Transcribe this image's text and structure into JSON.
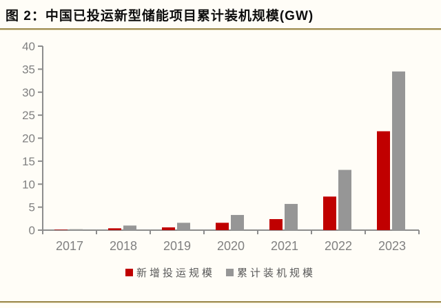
{
  "header": {
    "title": "图 2：中国已投运新型储能项目累计装机规模(GW)"
  },
  "colors": {
    "accent_red": "#c00000",
    "bar_gray": "#969696",
    "axis": "#8c8c8c",
    "tick_label": "#808080",
    "rule_gold": "#9c8a4d",
    "background": "#fffdf7",
    "legend_text": "#595959"
  },
  "chart_data": {
    "type": "bar",
    "title": "图 2：中国已投运新型储能项目累计装机规模(GW)",
    "unit": "GW",
    "categories": [
      "2017",
      "2018",
      "2019",
      "2020",
      "2021",
      "2022",
      "2023"
    ],
    "series": [
      {
        "name": "新增投运规模",
        "color": "#c00000",
        "values": [
          0.1,
          0.4,
          0.6,
          1.6,
          2.4,
          7.3,
          21.5
        ]
      },
      {
        "name": "累计装机规模",
        "color": "#969696",
        "values": [
          0.2,
          1.0,
          1.6,
          3.3,
          5.7,
          13.1,
          34.5
        ]
      }
    ],
    "xlabel": "",
    "ylabel": "",
    "ylim": [
      0,
      40
    ],
    "ytick_step": 5,
    "grid": false,
    "legend_position": "bottom"
  }
}
